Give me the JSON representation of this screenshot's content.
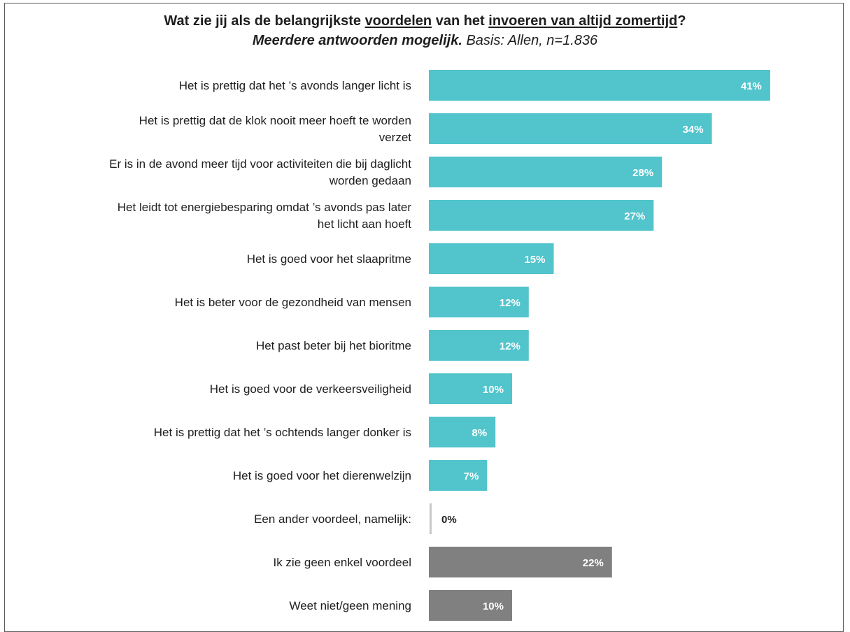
{
  "title": {
    "prefix": "Wat zie jij als de belangrijkste ",
    "u1": "voordelen",
    "mid": " van het ",
    "u2": "invoeren van altijd zomertijd",
    "suffix": "?",
    "sub_bold": "Meerdere antwoorden mogelijk.",
    "sub_rest": " Basis: Allen, n=1.836"
  },
  "colors": {
    "teal": "#52c4cc",
    "gray": "#808080",
    "light_gray": "#c8c8c8",
    "value_on_bar": "#ffffff",
    "value_off_bar": "#1e1e1e"
  },
  "chart_data": {
    "type": "bar",
    "orientation": "horizontal",
    "title": "Wat zie jij als de belangrijkste voordelen van het invoeren van altijd zomertijd?",
    "subtitle": "Meerdere antwoorden mogelijk. Basis: Allen, n=1.836",
    "xlim": [
      0,
      50
    ],
    "grid": false,
    "categories": [
      [
        "Het is prettig dat het ’s avonds langer licht is"
      ],
      [
        "Het is prettig dat de klok nooit meer hoeft te worden",
        "verzet"
      ],
      [
        "Er is in de avond meer tijd voor activiteiten die bij daglicht",
        "worden gedaan"
      ],
      [
        "Het leidt tot energiebesparing omdat ’s avonds pas later",
        "het licht aan hoeft"
      ],
      [
        "Het is goed voor het slaapritme"
      ],
      [
        "Het is beter voor de gezondheid van mensen"
      ],
      [
        "Het past beter bij het bioritme"
      ],
      [
        "Het is goed voor de verkeersveiligheid"
      ],
      [
        "Het is prettig dat het ’s ochtends langer donker is"
      ],
      [
        "Het is goed voor het dierenwelzijn"
      ],
      [
        "Een ander voordeel, namelijk:"
      ],
      [
        "Ik zie geen enkel voordeel"
      ],
      [
        "Weet niet/geen mening"
      ]
    ],
    "values": [
      41,
      34,
      28,
      27,
      15,
      12,
      12,
      10,
      8,
      7,
      0,
      22,
      10
    ],
    "value_labels": [
      "41%",
      "34%",
      "28%",
      "27%",
      "15%",
      "12%",
      "12%",
      "10%",
      "8%",
      "7%",
      "0%",
      "22%",
      "10%"
    ],
    "bar_color_groups": [
      "teal",
      "teal",
      "teal",
      "teal",
      "teal",
      "teal",
      "teal",
      "teal",
      "teal",
      "teal",
      "light_gray",
      "gray",
      "gray"
    ]
  }
}
